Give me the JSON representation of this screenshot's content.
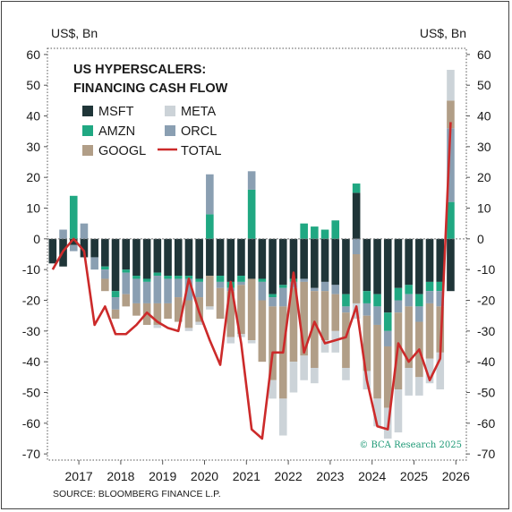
{
  "colors": {
    "MSFT": "#1f3538",
    "META": "#ccd3d8",
    "AMZN": "#20a882",
    "ORCL": "#8a9fb2",
    "GOOGL": "#b19e87",
    "TOTAL": "#cc2a2a"
  },
  "chart_data": {
    "type": "bar",
    "stacked": true,
    "title_lines": [
      "US HYPERSCALERS:",
      "FINANCING CASH FLOW"
    ],
    "left_unit": "US$, Bn",
    "right_unit": "US$, Bn",
    "ylim": [
      -72,
      62
    ],
    "yticks": [
      60,
      50,
      40,
      30,
      20,
      10,
      0,
      -10,
      -20,
      -30,
      -40,
      -50,
      -60,
      -70
    ],
    "ytick_labels": [
      "60",
      "50",
      "40",
      "30",
      "20",
      "10",
      "0",
      "-10",
      "-20",
      "-30",
      "-40",
      "-50",
      "-60",
      "-70"
    ],
    "xlim": [
      2016.25,
      2026.25
    ],
    "xticks": [
      2017,
      2018,
      2019,
      2020,
      2021,
      2022,
      2023,
      2024,
      2025,
      2026
    ],
    "xtick_labels": [
      "2017",
      "2018",
      "2019",
      "2020",
      "2021",
      "2022",
      "2023",
      "2024",
      "2025",
      "2026"
    ],
    "grid": false,
    "legend_placement": "top-left",
    "source": "SOURCE: BLOOMBERG FINANCE L.P.",
    "copyright": "© BCA Research 2025",
    "series_names": [
      "MSFT",
      "META",
      "AMZN",
      "ORCL",
      "GOOGL",
      "TOTAL"
    ],
    "legend_rows": [
      [
        "MSFT",
        "META"
      ],
      [
        "AMZN",
        "ORCL"
      ],
      [
        "GOOGL",
        "TOTAL"
      ]
    ],
    "quarters": [
      "2016Q1",
      "2016Q2",
      "2016Q3",
      "2016Q4",
      "2017Q1",
      "2017Q2",
      "2017Q3",
      "2017Q4",
      "2018Q1",
      "2018Q2",
      "2018Q3",
      "2018Q4",
      "2019Q1",
      "2019Q2",
      "2019Q3",
      "2019Q4",
      "2020Q1",
      "2020Q2",
      "2020Q3",
      "2020Q4",
      "2021Q1",
      "2021Q2",
      "2021Q3",
      "2021Q4",
      "2022Q1",
      "2022Q2",
      "2022Q3",
      "2022Q4",
      "2023Q1",
      "2023Q2",
      "2023Q3",
      "2023Q4",
      "2024Q1",
      "2024Q2",
      "2024Q3",
      "2024Q4",
      "2025Q1",
      "2025Q2",
      "2025Q3"
    ],
    "x": [
      2016.375,
      2016.625,
      2016.875,
      2017.125,
      2017.375,
      2017.625,
      2017.875,
      2018.125,
      2018.375,
      2018.625,
      2018.875,
      2019.125,
      2019.375,
      2019.625,
      2019.875,
      2020.125,
      2020.375,
      2020.625,
      2020.875,
      2021.125,
      2021.375,
      2021.625,
      2021.875,
      2022.125,
      2022.375,
      2022.625,
      2022.875,
      2023.125,
      2023.375,
      2023.625,
      2023.875,
      2024.125,
      2024.375,
      2024.625,
      2024.875,
      2025.125,
      2025.375,
      2025.625,
      2025.875
    ],
    "series": [
      {
        "name": "MSFT",
        "values": [
          -8,
          -9,
          -2,
          -6,
          -6,
          -9,
          -17,
          -10,
          -12,
          -13,
          -11,
          -12,
          -12,
          -12,
          -13,
          -12,
          -12,
          -14,
          -12,
          -13,
          -13,
          -18,
          -15,
          -13,
          -13,
          -16,
          -14,
          -15,
          -18,
          15,
          -17,
          -18,
          -24,
          -16,
          -15,
          -18,
          -14,
          -14,
          -17
        ]
      },
      {
        "name": "META",
        "values": [
          0,
          0,
          0,
          0,
          0,
          0,
          0,
          0,
          0,
          0,
          -1,
          0,
          0,
          -1,
          -1,
          -1,
          0,
          -2,
          -1,
          -1,
          0,
          -6,
          -12,
          -10,
          -8,
          -5,
          -4,
          -7,
          -4,
          -5,
          -6,
          -9,
          -10,
          -14,
          -9,
          -6,
          -8,
          -12,
          10
        ]
      },
      {
        "name": "AMZN",
        "values": [
          0,
          0,
          14,
          0,
          0,
          -1,
          -2,
          -1,
          -1,
          -1,
          -1,
          -1,
          -1,
          -1,
          -1,
          8,
          -2,
          -2,
          -2,
          16,
          -1,
          -1,
          -1,
          -1,
          5,
          4,
          3,
          6,
          -4,
          3,
          -4,
          -4,
          -6,
          -4,
          -3,
          -4,
          -3,
          -3,
          12
        ]
      },
      {
        "name": "ORCL",
        "values": [
          0,
          3,
          -2,
          5,
          -4,
          -3,
          -4,
          -7,
          -8,
          -7,
          -9,
          -8,
          -6,
          -7,
          -5,
          13,
          -2,
          -1,
          -1,
          6,
          -6,
          -3,
          -6,
          -2,
          -1,
          -1,
          -3,
          -3,
          -2,
          -5,
          -4,
          -6,
          -5,
          -4,
          -4,
          -5,
          -4,
          -5,
          24
        ]
      },
      {
        "name": "GOOGL",
        "values": [
          0,
          0,
          0,
          0,
          0,
          -4,
          -3,
          -4,
          -4,
          -7,
          -7,
          -5,
          -8,
          -9,
          -8,
          -10,
          -10,
          -15,
          -16,
          -20,
          -20,
          -24,
          -30,
          -24,
          -24,
          -25,
          -16,
          -12,
          -18,
          -16,
          -18,
          -24,
          -20,
          -25,
          -20,
          -18,
          -18,
          -15,
          9
        ]
      },
      {
        "name": "TOTAL",
        "line": true,
        "values": [
          -10,
          -4,
          0,
          -4,
          -28,
          -22,
          -31,
          -31,
          -28,
          -24,
          -27,
          -29,
          -30,
          -13,
          -24,
          -33,
          -41,
          -14,
          -34,
          -62,
          -65,
          -37,
          -37,
          -11,
          -37,
          -27,
          -34,
          -33,
          -32,
          -22,
          -46,
          -61,
          -62,
          -34,
          -40,
          -36,
          -46,
          -39,
          38
        ]
      }
    ]
  }
}
